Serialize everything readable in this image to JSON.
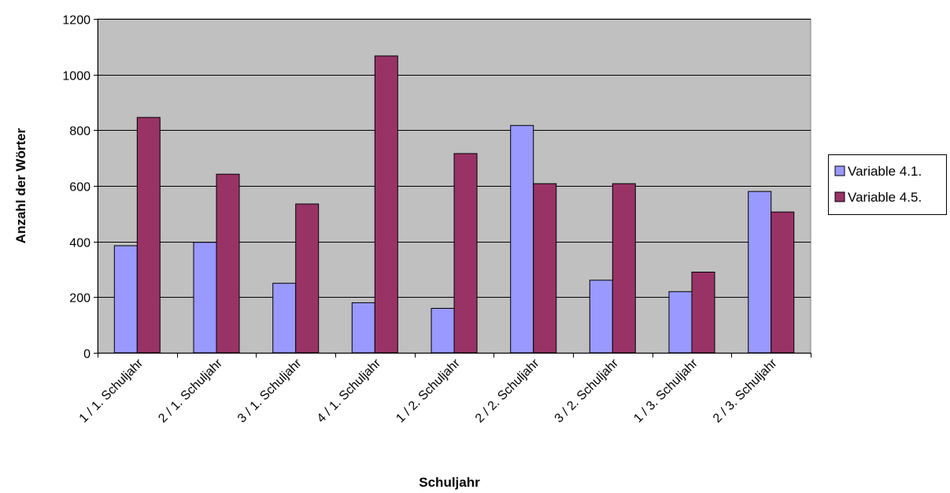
{
  "chart_data": {
    "type": "bar",
    "title": "",
    "xlabel": "Schuljahr",
    "ylabel": "Anzahl der Wörter",
    "ylim": [
      0,
      1200
    ],
    "yticks": [
      0,
      200,
      400,
      600,
      800,
      1000,
      1200
    ],
    "grid": true,
    "legend_position": "right",
    "categories": [
      "1 / 1. Schuljahr",
      "2 / 1. Schuljahr",
      "3 / 1. Schuljahr",
      "4 / 1. Schuljahr",
      "1 / 2. Schuljahr",
      "2 / 2. Schuljahr",
      "3 / 2. Schuljahr",
      "1 / 3. Schuljahr",
      "2 / 3. Schuljahr"
    ],
    "series": [
      {
        "name": "Variable 4.1.",
        "color": "#9999ff",
        "values": [
          385,
          397,
          250,
          180,
          160,
          817,
          261,
          220,
          580
        ]
      },
      {
        "name": "Variable 4.5.",
        "color": "#993366",
        "values": [
          846,
          642,
          535,
          1067,
          716,
          608,
          608,
          290,
          506
        ]
      }
    ],
    "colors": {
      "plot_background": "#c0c0c0",
      "gridline": "#000000"
    }
  }
}
